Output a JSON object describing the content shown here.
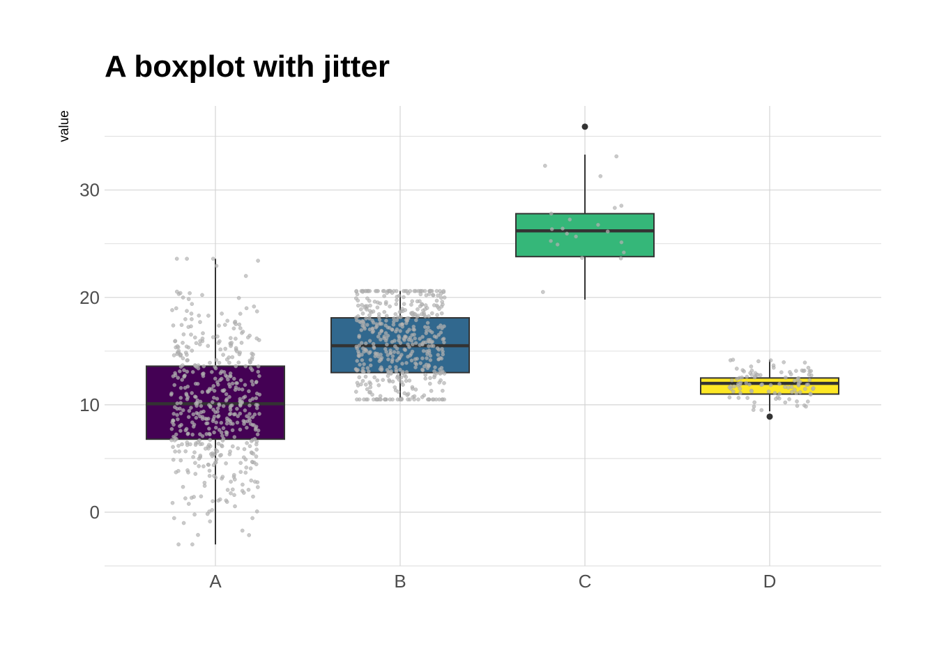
{
  "chart_data": {
    "type": "boxplot",
    "title": "A boxplot with jitter",
    "ylabel": "value",
    "xlabel": "",
    "categories": [
      "A",
      "B",
      "C",
      "D"
    ],
    "ylim": [
      -5,
      37
    ],
    "yticks": [
      0,
      10,
      20,
      30
    ],
    "grid": true,
    "legend": "none",
    "boxes": [
      {
        "name": "A",
        "whisker_low": -3.0,
        "q1": 6.8,
        "median": 10.1,
        "q3": 13.6,
        "whisker_high": 23.6,
        "outliers": [],
        "color": "#440154",
        "n": 500,
        "jitter_spread": 0.6
      },
      {
        "name": "B",
        "whisker_low": 10.5,
        "q1": 13.0,
        "median": 15.5,
        "q3": 18.1,
        "whisker_high": 20.6,
        "outliers": [],
        "color": "#31688e",
        "n": 500,
        "jitter_spread": 0.6
      },
      {
        "name": "C",
        "whisker_low": 19.8,
        "q1": 23.8,
        "median": 26.2,
        "q3": 27.8,
        "whisker_high": 33.3,
        "outliers": [
          35.9
        ],
        "color": "#35b779",
        "n": 20,
        "jitter_spread": 0.6
      },
      {
        "name": "D",
        "whisker_low": 9.4,
        "q1": 11.0,
        "median": 12.0,
        "q3": 12.5,
        "whisker_high": 14.2,
        "outliers": [
          8.9
        ],
        "color": "#fde725",
        "n": 100,
        "jitter_spread": 0.6
      }
    ],
    "colors": {
      "grid": "#d4d4d4",
      "box_outline": "#333333",
      "jitter_point": "#b3b3b3"
    }
  }
}
